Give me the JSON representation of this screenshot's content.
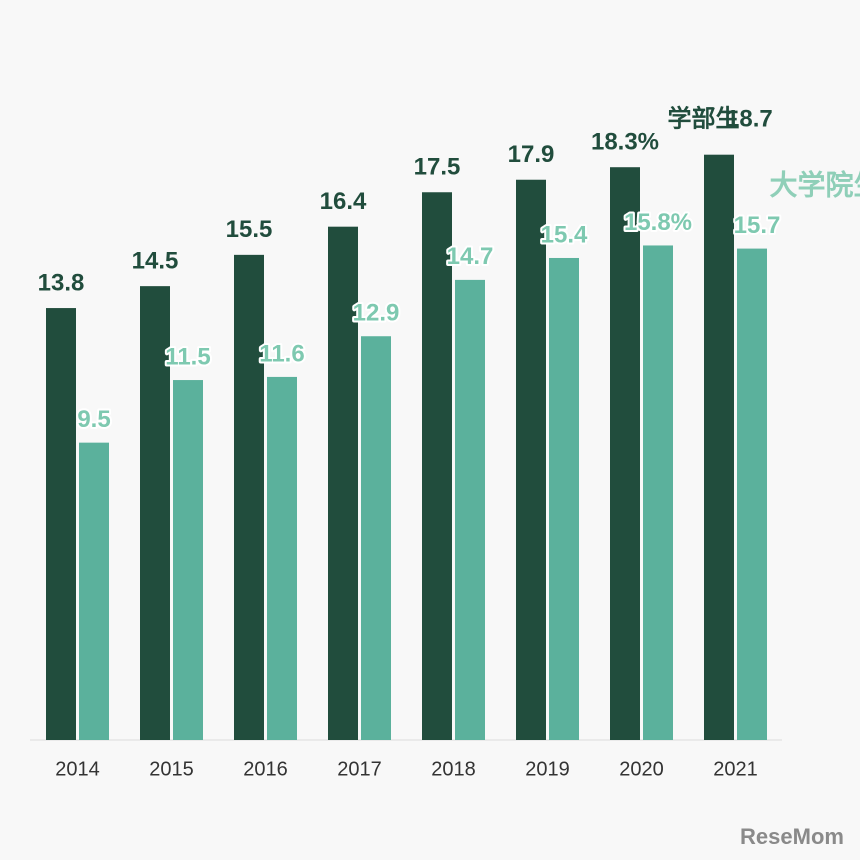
{
  "chart_data": {
    "type": "bar",
    "categories": [
      "2014",
      "2015",
      "2016",
      "2017",
      "2018",
      "2019",
      "2020",
      "2021"
    ],
    "series": [
      {
        "name": "学部生",
        "color": "#214d3d",
        "values": [
          13.8,
          14.5,
          15.5,
          16.4,
          17.5,
          17.9,
          18.3,
          18.7
        ],
        "value_labels": [
          "13.8",
          "14.5",
          "15.5",
          "16.4",
          "17.5",
          "17.9",
          "18.3%",
          "18.7"
        ]
      },
      {
        "name": "大学院生",
        "color": "#5bb19c",
        "values": [
          9.5,
          11.5,
          11.6,
          12.9,
          14.7,
          15.4,
          15.8,
          15.7
        ],
        "value_labels": [
          "9.5",
          "11.5",
          "11.6",
          "12.9",
          "14.7",
          "15.4",
          "15.8%",
          "15.7"
        ]
      }
    ],
    "ylim": [
      0,
      20
    ]
  },
  "watermark": "ReseMom"
}
